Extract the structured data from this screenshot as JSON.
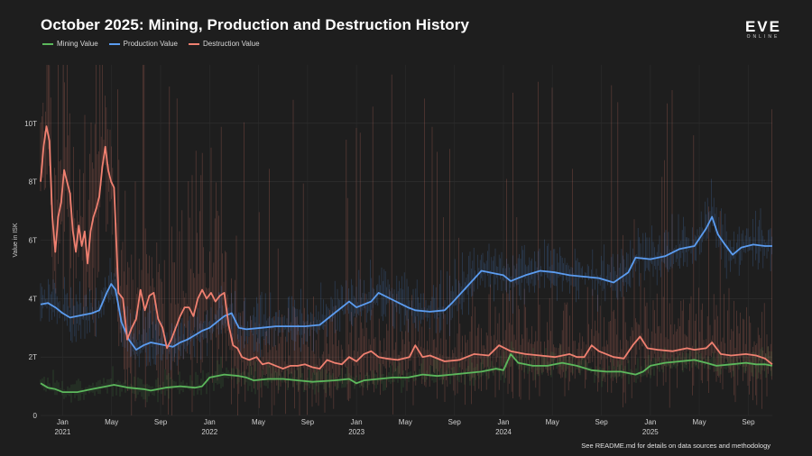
{
  "title": "October 2025: Mining, Production and Destruction History",
  "logo": {
    "main": "EVE",
    "sub": "ONLINE"
  },
  "footnote": "See README.md for details on data sources and methodology",
  "chart_data": {
    "type": "line",
    "title": "October 2025: Mining, Production and Destruction History",
    "ylabel": "Value in ISK",
    "xlabel": "",
    "ylim": [
      0,
      12
    ],
    "xlim": [
      2020.85,
      2025.83
    ],
    "y_ticks": [
      {
        "value": 0,
        "label": "0"
      },
      {
        "value": 2,
        "label": "2T"
      },
      {
        "value": 4,
        "label": "4T"
      },
      {
        "value": 6,
        "label": "6T"
      },
      {
        "value": 8,
        "label": "8T"
      },
      {
        "value": 10,
        "label": "10T"
      }
    ],
    "x_ticks": [
      {
        "value": 2021.0,
        "label": "Jan",
        "year": "2021"
      },
      {
        "value": 2021.333,
        "label": "May",
        "year": ""
      },
      {
        "value": 2021.667,
        "label": "Sep",
        "year": ""
      },
      {
        "value": 2022.0,
        "label": "Jan",
        "year": "2022"
      },
      {
        "value": 2022.333,
        "label": "May",
        "year": ""
      },
      {
        "value": 2022.667,
        "label": "Sep",
        "year": ""
      },
      {
        "value": 2023.0,
        "label": "Jan",
        "year": "2023"
      },
      {
        "value": 2023.333,
        "label": "May",
        "year": ""
      },
      {
        "value": 2023.667,
        "label": "Sep",
        "year": ""
      },
      {
        "value": 2024.0,
        "label": "Jan",
        "year": "2024"
      },
      {
        "value": 2024.333,
        "label": "May",
        "year": ""
      },
      {
        "value": 2024.667,
        "label": "Sep",
        "year": ""
      },
      {
        "value": 2025.0,
        "label": "Jan",
        "year": "2025"
      },
      {
        "value": 2025.333,
        "label": "May",
        "year": ""
      },
      {
        "value": 2025.667,
        "label": "Sep",
        "year": ""
      }
    ],
    "grid": true,
    "legend_position": "top-left",
    "series": [
      {
        "name": "Mining Value",
        "color": "#5cb85c",
        "points": [
          [
            2020.85,
            1.1
          ],
          [
            2020.9,
            0.95
          ],
          [
            2020.95,
            0.9
          ],
          [
            2021.0,
            0.8
          ],
          [
            2021.05,
            0.8
          ],
          [
            2021.1,
            0.8
          ],
          [
            2021.2,
            0.9
          ],
          [
            2021.3,
            1.0
          ],
          [
            2021.35,
            1.05
          ],
          [
            2021.45,
            0.95
          ],
          [
            2021.55,
            0.9
          ],
          [
            2021.6,
            0.85
          ],
          [
            2021.7,
            0.95
          ],
          [
            2021.8,
            1.0
          ],
          [
            2021.9,
            0.95
          ],
          [
            2021.95,
            1.0
          ],
          [
            2022.0,
            1.3
          ],
          [
            2022.1,
            1.4
          ],
          [
            2022.2,
            1.35
          ],
          [
            2022.25,
            1.3
          ],
          [
            2022.3,
            1.2
          ],
          [
            2022.4,
            1.25
          ],
          [
            2022.5,
            1.25
          ],
          [
            2022.6,
            1.2
          ],
          [
            2022.7,
            1.15
          ],
          [
            2022.85,
            1.2
          ],
          [
            2022.95,
            1.25
          ],
          [
            2023.0,
            1.1
          ],
          [
            2023.05,
            1.2
          ],
          [
            2023.15,
            1.25
          ],
          [
            2023.25,
            1.3
          ],
          [
            2023.35,
            1.3
          ],
          [
            2023.45,
            1.4
          ],
          [
            2023.55,
            1.35
          ],
          [
            2023.65,
            1.4
          ],
          [
            2023.75,
            1.45
          ],
          [
            2023.85,
            1.5
          ],
          [
            2023.95,
            1.6
          ],
          [
            2024.0,
            1.55
          ],
          [
            2024.05,
            2.1
          ],
          [
            2024.1,
            1.8
          ],
          [
            2024.2,
            1.7
          ],
          [
            2024.3,
            1.7
          ],
          [
            2024.4,
            1.8
          ],
          [
            2024.5,
            1.7
          ],
          [
            2024.6,
            1.55
          ],
          [
            2024.7,
            1.5
          ],
          [
            2024.8,
            1.5
          ],
          [
            2024.9,
            1.4
          ],
          [
            2024.95,
            1.5
          ],
          [
            2025.0,
            1.7
          ],
          [
            2025.1,
            1.8
          ],
          [
            2025.2,
            1.85
          ],
          [
            2025.3,
            1.9
          ],
          [
            2025.38,
            1.8
          ],
          [
            2025.45,
            1.7
          ],
          [
            2025.55,
            1.75
          ],
          [
            2025.65,
            1.8
          ],
          [
            2025.72,
            1.75
          ],
          [
            2025.78,
            1.75
          ],
          [
            2025.83,
            1.7
          ]
        ]
      },
      {
        "name": "Production Value",
        "color": "#5b9cf0",
        "points": [
          [
            2020.85,
            3.8
          ],
          [
            2020.9,
            3.85
          ],
          [
            2020.95,
            3.7
          ],
          [
            2021.0,
            3.5
          ],
          [
            2021.05,
            3.35
          ],
          [
            2021.1,
            3.4
          ],
          [
            2021.2,
            3.5
          ],
          [
            2021.25,
            3.6
          ],
          [
            2021.3,
            4.2
          ],
          [
            2021.33,
            4.5
          ],
          [
            2021.36,
            4.3
          ],
          [
            2021.4,
            3.2
          ],
          [
            2021.45,
            2.6
          ],
          [
            2021.5,
            2.25
          ],
          [
            2021.55,
            2.4
          ],
          [
            2021.6,
            2.5
          ],
          [
            2021.65,
            2.45
          ],
          [
            2021.7,
            2.4
          ],
          [
            2021.75,
            2.35
          ],
          [
            2021.8,
            2.5
          ],
          [
            2021.85,
            2.6
          ],
          [
            2021.9,
            2.75
          ],
          [
            2021.95,
            2.9
          ],
          [
            2022.0,
            3.0
          ],
          [
            2022.05,
            3.2
          ],
          [
            2022.1,
            3.4
          ],
          [
            2022.15,
            3.5
          ],
          [
            2022.2,
            3.0
          ],
          [
            2022.25,
            2.95
          ],
          [
            2022.35,
            3.0
          ],
          [
            2022.45,
            3.05
          ],
          [
            2022.55,
            3.05
          ],
          [
            2022.65,
            3.05
          ],
          [
            2022.75,
            3.1
          ],
          [
            2022.85,
            3.5
          ],
          [
            2022.95,
            3.9
          ],
          [
            2023.0,
            3.7
          ],
          [
            2023.05,
            3.8
          ],
          [
            2023.1,
            3.9
          ],
          [
            2023.15,
            4.2
          ],
          [
            2023.25,
            3.95
          ],
          [
            2023.35,
            3.7
          ],
          [
            2023.4,
            3.6
          ],
          [
            2023.5,
            3.55
          ],
          [
            2023.6,
            3.6
          ],
          [
            2023.65,
            3.85
          ],
          [
            2023.75,
            4.4
          ],
          [
            2023.85,
            4.95
          ],
          [
            2023.95,
            4.85
          ],
          [
            2024.0,
            4.8
          ],
          [
            2024.05,
            4.6
          ],
          [
            2024.1,
            4.7
          ],
          [
            2024.15,
            4.8
          ],
          [
            2024.25,
            4.95
          ],
          [
            2024.35,
            4.9
          ],
          [
            2024.45,
            4.8
          ],
          [
            2024.55,
            4.75
          ],
          [
            2024.65,
            4.7
          ],
          [
            2024.75,
            4.55
          ],
          [
            2024.85,
            4.9
          ],
          [
            2024.9,
            5.4
          ],
          [
            2025.0,
            5.35
          ],
          [
            2025.1,
            5.45
          ],
          [
            2025.2,
            5.7
          ],
          [
            2025.3,
            5.8
          ],
          [
            2025.38,
            6.4
          ],
          [
            2025.42,
            6.8
          ],
          [
            2025.46,
            6.2
          ],
          [
            2025.5,
            5.9
          ],
          [
            2025.56,
            5.5
          ],
          [
            2025.62,
            5.75
          ],
          [
            2025.7,
            5.85
          ],
          [
            2025.78,
            5.8
          ],
          [
            2025.83,
            5.8
          ]
        ]
      },
      {
        "name": "Destruction Value",
        "color": "#f08070",
        "points": [
          [
            2020.85,
            8.0
          ],
          [
            2020.87,
            9.2
          ],
          [
            2020.89,
            9.9
          ],
          [
            2020.91,
            9.4
          ],
          [
            2020.93,
            6.8
          ],
          [
            2020.95,
            5.6
          ],
          [
            2020.97,
            6.8
          ],
          [
            2020.99,
            7.3
          ],
          [
            2021.01,
            8.4
          ],
          [
            2021.03,
            8.0
          ],
          [
            2021.05,
            7.6
          ],
          [
            2021.07,
            6.3
          ],
          [
            2021.09,
            5.6
          ],
          [
            2021.11,
            6.5
          ],
          [
            2021.13,
            5.8
          ],
          [
            2021.15,
            6.3
          ],
          [
            2021.17,
            5.2
          ],
          [
            2021.19,
            6.3
          ],
          [
            2021.21,
            6.8
          ],
          [
            2021.23,
            7.1
          ],
          [
            2021.25,
            7.5
          ],
          [
            2021.27,
            8.5
          ],
          [
            2021.29,
            9.2
          ],
          [
            2021.31,
            8.4
          ],
          [
            2021.33,
            8.0
          ],
          [
            2021.35,
            7.8
          ],
          [
            2021.38,
            4.2
          ],
          [
            2021.41,
            4.0
          ],
          [
            2021.44,
            2.6
          ],
          [
            2021.47,
            3.0
          ],
          [
            2021.5,
            3.3
          ],
          [
            2021.53,
            4.3
          ],
          [
            2021.56,
            3.6
          ],
          [
            2021.59,
            4.1
          ],
          [
            2021.62,
            4.2
          ],
          [
            2021.65,
            3.3
          ],
          [
            2021.68,
            3.0
          ],
          [
            2021.71,
            2.3
          ],
          [
            2021.74,
            2.6
          ],
          [
            2021.77,
            3.0
          ],
          [
            2021.8,
            3.4
          ],
          [
            2021.83,
            3.7
          ],
          [
            2021.86,
            3.7
          ],
          [
            2021.89,
            3.4
          ],
          [
            2021.92,
            4.0
          ],
          [
            2021.95,
            4.3
          ],
          [
            2021.98,
            4.0
          ],
          [
            2022.01,
            4.2
          ],
          [
            2022.04,
            3.9
          ],
          [
            2022.07,
            4.1
          ],
          [
            2022.1,
            4.2
          ],
          [
            2022.13,
            3.1
          ],
          [
            2022.16,
            2.4
          ],
          [
            2022.19,
            2.3
          ],
          [
            2022.22,
            2.0
          ],
          [
            2022.27,
            1.9
          ],
          [
            2022.32,
            2.0
          ],
          [
            2022.36,
            1.75
          ],
          [
            2022.4,
            1.8
          ],
          [
            2022.45,
            1.7
          ],
          [
            2022.5,
            1.6
          ],
          [
            2022.55,
            1.7
          ],
          [
            2022.6,
            1.7
          ],
          [
            2022.65,
            1.75
          ],
          [
            2022.7,
            1.65
          ],
          [
            2022.75,
            1.6
          ],
          [
            2022.8,
            1.9
          ],
          [
            2022.85,
            1.8
          ],
          [
            2022.9,
            1.75
          ],
          [
            2022.95,
            2.0
          ],
          [
            2023.0,
            1.85
          ],
          [
            2023.05,
            2.1
          ],
          [
            2023.1,
            2.2
          ],
          [
            2023.15,
            2.0
          ],
          [
            2023.2,
            1.95
          ],
          [
            2023.28,
            1.9
          ],
          [
            2023.36,
            2.0
          ],
          [
            2023.4,
            2.4
          ],
          [
            2023.45,
            2.0
          ],
          [
            2023.5,
            2.05
          ],
          [
            2023.6,
            1.85
          ],
          [
            2023.7,
            1.9
          ],
          [
            2023.8,
            2.1
          ],
          [
            2023.9,
            2.05
          ],
          [
            2023.97,
            2.4
          ],
          [
            2024.05,
            2.2
          ],
          [
            2024.15,
            2.1
          ],
          [
            2024.25,
            2.05
          ],
          [
            2024.35,
            2.0
          ],
          [
            2024.45,
            2.1
          ],
          [
            2024.5,
            2.0
          ],
          [
            2024.55,
            2.0
          ],
          [
            2024.6,
            2.4
          ],
          [
            2024.65,
            2.2
          ],
          [
            2024.75,
            2.0
          ],
          [
            2024.82,
            1.95
          ],
          [
            2024.88,
            2.4
          ],
          [
            2024.93,
            2.7
          ],
          [
            2024.98,
            2.3
          ],
          [
            2025.05,
            2.25
          ],
          [
            2025.15,
            2.2
          ],
          [
            2025.25,
            2.3
          ],
          [
            2025.3,
            2.25
          ],
          [
            2025.38,
            2.3
          ],
          [
            2025.42,
            2.5
          ],
          [
            2025.48,
            2.1
          ],
          [
            2025.55,
            2.05
          ],
          [
            2025.65,
            2.1
          ],
          [
            2025.72,
            2.05
          ],
          [
            2025.78,
            1.95
          ],
          [
            2025.83,
            1.75
          ]
        ]
      }
    ]
  }
}
